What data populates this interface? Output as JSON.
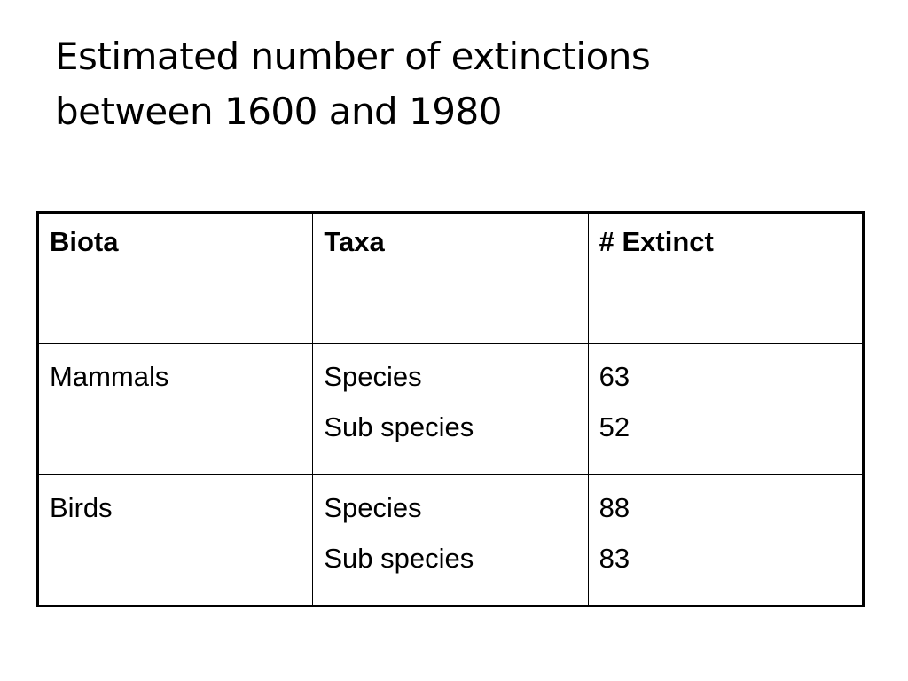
{
  "slide": {
    "title_lines": [
      "Estimated number of extinctions",
      "between 1600 and 1980"
    ]
  },
  "table": {
    "headers": [
      "Biota",
      "Taxa",
      "# Extinct"
    ],
    "rows": [
      {
        "biota": "Mammals",
        "taxa": [
          "Species",
          "Sub species"
        ],
        "extinct": [
          "63",
          "52"
        ]
      },
      {
        "biota": "Birds",
        "taxa": [
          "Species",
          "Sub species"
        ],
        "extinct": [
          "88",
          "83"
        ]
      }
    ]
  }
}
